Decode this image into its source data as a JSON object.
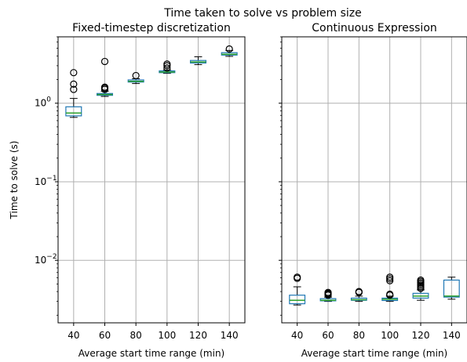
{
  "figure_title": "Time taken to solve vs problem size",
  "colors": {
    "box": "#1f77b4",
    "median": "#2ca02c",
    "grid": "#b0b0b0",
    "axes": "#000000"
  },
  "chart_data": [
    {
      "type": "box",
      "title": "Fixed-timestep discretization",
      "xlabel": "Average start time range (min)",
      "ylabel": "Time to solve (s)",
      "yscale": "log",
      "ylim": [
        0.0016,
        7.0
      ],
      "yticks": [
        {
          "value": 1,
          "label": "10^0"
        },
        {
          "value": 0.1,
          "label": "10^-1"
        },
        {
          "value": 0.01,
          "label": "10^-2"
        }
      ],
      "grid": true,
      "categories": [
        "40",
        "60",
        "80",
        "100",
        "120",
        "140"
      ],
      "boxes": [
        {
          "whislo": 0.66,
          "q1": 0.69,
          "med": 0.75,
          "q3": 0.9,
          "whishi": 1.15,
          "fliers": [
            1.5,
            1.75,
            2.45
          ]
        },
        {
          "whislo": 1.22,
          "q1": 1.26,
          "med": 1.29,
          "q3": 1.33,
          "whishi": 1.42,
          "fliers": [
            1.5,
            1.55,
            1.6,
            3.4
          ]
        },
        {
          "whislo": 1.78,
          "q1": 1.86,
          "med": 1.9,
          "q3": 1.98,
          "whishi": 2.05,
          "fliers": [
            2.25
          ]
        },
        {
          "whislo": 2.4,
          "q1": 2.45,
          "med": 2.5,
          "q3": 2.58,
          "whishi": 2.65,
          "fliers": [
            2.8,
            3.0,
            3.15
          ]
        },
        {
          "whislo": 3.1,
          "q1": 3.25,
          "med": 3.35,
          "q3": 3.5,
          "whishi": 3.9,
          "fliers": []
        },
        {
          "whislo": 3.95,
          "q1": 4.1,
          "med": 4.2,
          "q3": 4.4,
          "whishi": 4.7,
          "fliers": [
            4.9
          ]
        }
      ]
    },
    {
      "type": "box",
      "title": "Continuous Expression",
      "xlabel": "Average start time range (min)",
      "ylabel": "",
      "yscale": "log",
      "ylim": [
        0.0016,
        7.0
      ],
      "shared_y": true,
      "grid": true,
      "categories": [
        "40",
        "60",
        "80",
        "100",
        "120",
        "140"
      ],
      "boxes": [
        {
          "whislo": 0.0027,
          "q1": 0.0028,
          "med": 0.0031,
          "q3": 0.0036,
          "whishi": 0.0046,
          "fliers": [
            0.0059,
            0.0061
          ]
        },
        {
          "whislo": 0.003,
          "q1": 0.00305,
          "med": 0.0031,
          "q3": 0.00325,
          "whishi": 0.0034,
          "fliers": [
            0.0036,
            0.0037,
            0.0038,
            0.0039
          ]
        },
        {
          "whislo": 0.003,
          "q1": 0.0031,
          "med": 0.00315,
          "q3": 0.0033,
          "whishi": 0.0035,
          "fliers": [
            0.0039,
            0.004
          ]
        },
        {
          "whislo": 0.003,
          "q1": 0.00308,
          "med": 0.0032,
          "q3": 0.0033,
          "whishi": 0.0035,
          "fliers": [
            0.0036,
            0.0037,
            0.0055,
            0.0058,
            0.0061
          ]
        },
        {
          "whislo": 0.0031,
          "q1": 0.0033,
          "med": 0.0035,
          "q3": 0.0038,
          "whishi": 0.0042,
          "fliers": [
            0.0044,
            0.0046,
            0.0048,
            0.005,
            0.0052,
            0.0054,
            0.0056
          ]
        },
        {
          "whislo": 0.0032,
          "q1": 0.0034,
          "med": 0.0035,
          "q3": 0.0056,
          "whishi": 0.0061,
          "fliers": []
        }
      ]
    }
  ]
}
